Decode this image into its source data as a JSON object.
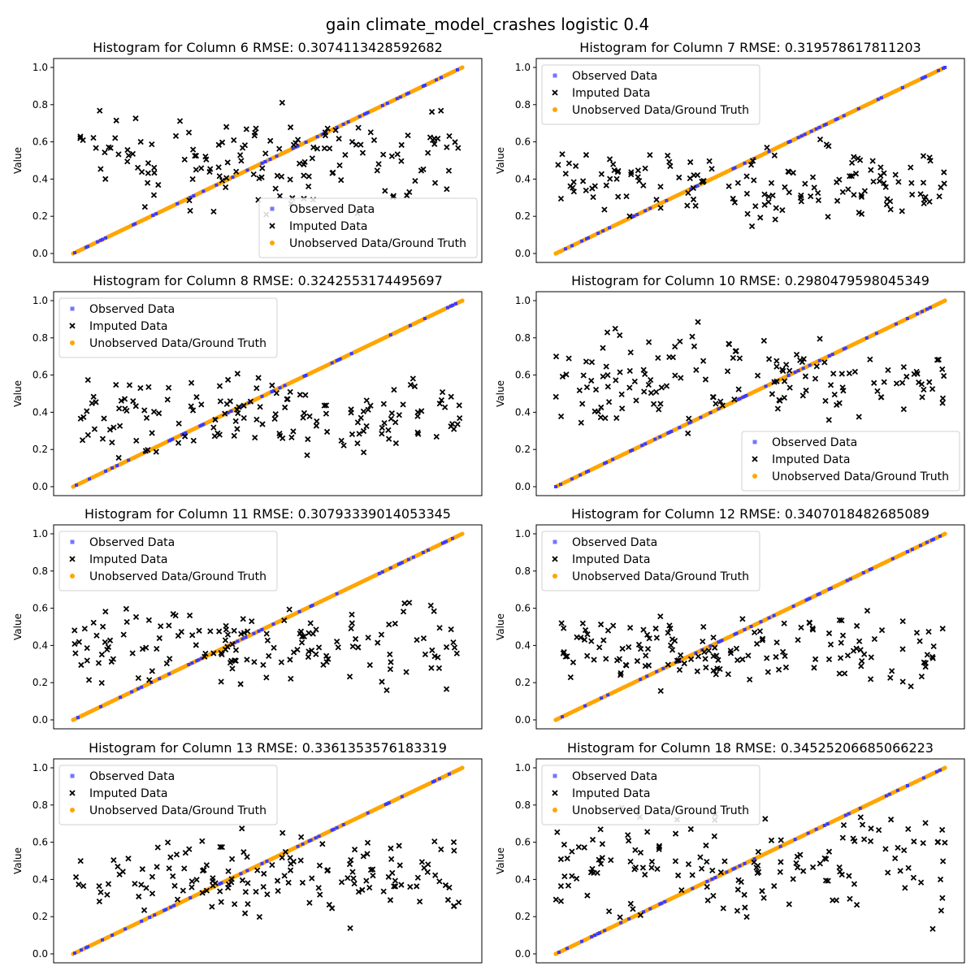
{
  "figure_title": "gain climate_model_crashes logistic 0.4",
  "colors": {
    "observed": "#3a3aff",
    "imputed": "#000000",
    "ground_truth": "#ffa500"
  },
  "chart_data": [
    {
      "type": "scatter",
      "title": "Histogram for Column 6 RMSE: 0.3074113428592682",
      "xlabel": "",
      "ylabel": "Value",
      "ylim": [
        0,
        1
      ],
      "yticks": [
        0.0,
        0.2,
        0.4,
        0.6,
        0.8,
        1.0
      ],
      "ytick_labels": [
        "0.0",
        "0.2",
        "0.4",
        "0.6",
        "0.8",
        "1.0"
      ],
      "legend_position": "lower-right",
      "legend": [
        "Observed Data",
        "Imputed Data",
        "Unobserved Data/Ground Truth"
      ],
      "n_points": 240,
      "imputed_range": [
        0.13,
        0.89
      ],
      "seed": 6
    },
    {
      "type": "scatter",
      "title": "Histogram for Column 7 RMSE: 0.319578617811203",
      "xlabel": "",
      "ylabel": "Value",
      "ylim": [
        0,
        1
      ],
      "yticks": [
        0.0,
        0.2,
        0.4,
        0.6,
        0.8,
        1.0
      ],
      "ytick_labels": [
        "0.0",
        "0.2",
        "0.4",
        "0.6",
        "0.8",
        "1.0"
      ],
      "legend_position": "upper-left",
      "legend": [
        "Observed Data",
        "Imputed Data",
        "Unobserved Data/Ground Truth"
      ],
      "n_points": 240,
      "imputed_range": [
        0.09,
        0.66
      ],
      "seed": 7
    },
    {
      "type": "scatter",
      "title": "Histogram for Column 8 RMSE: 0.3242553174495697",
      "xlabel": "",
      "ylabel": "Value",
      "ylim": [
        0,
        1
      ],
      "yticks": [
        0.0,
        0.2,
        0.4,
        0.6,
        0.8,
        1.0
      ],
      "ytick_labels": [
        "0.0",
        "0.2",
        "0.4",
        "0.6",
        "0.8",
        "1.0"
      ],
      "legend_position": "upper-left",
      "legend": [
        "Observed Data",
        "Imputed Data",
        "Unobserved Data/Ground Truth"
      ],
      "n_points": 240,
      "imputed_range": [
        0.09,
        0.67
      ],
      "seed": 8
    },
    {
      "type": "scatter",
      "title": "Histogram for Column 10 RMSE: 0.2980479598045349",
      "xlabel": "",
      "ylabel": "Value",
      "ylim": [
        0,
        1
      ],
      "yticks": [
        0.0,
        0.2,
        0.4,
        0.6,
        0.8,
        1.0
      ],
      "ytick_labels": [
        "0.0",
        "0.2",
        "0.4",
        "0.6",
        "0.8",
        "1.0"
      ],
      "legend_position": "lower-right",
      "legend": [
        "Observed Data",
        "Imputed Data",
        "Unobserved Data/Ground Truth"
      ],
      "n_points": 240,
      "imputed_range": [
        0.22,
        0.95
      ],
      "seed": 10
    },
    {
      "type": "scatter",
      "title": "Histogram for Column 11 RMSE: 0.30793339014053345",
      "xlabel": "",
      "ylabel": "Value",
      "ylim": [
        0,
        1
      ],
      "yticks": [
        0.0,
        0.2,
        0.4,
        0.6,
        0.8,
        1.0
      ],
      "ytick_labels": [
        "0.0",
        "0.2",
        "0.4",
        "0.6",
        "0.8",
        "1.0"
      ],
      "legend_position": "upper-left",
      "legend": [
        "Observed Data",
        "Imputed Data",
        "Unobserved Data/Ground Truth"
      ],
      "n_points": 240,
      "imputed_range": [
        0.07,
        0.7
      ],
      "seed": 11
    },
    {
      "type": "scatter",
      "title": "Histogram for Column 12 RMSE: 0.3407018482685089",
      "xlabel": "",
      "ylabel": "Value",
      "ylim": [
        0,
        1
      ],
      "yticks": [
        0.0,
        0.2,
        0.4,
        0.6,
        0.8,
        1.0
      ],
      "ytick_labels": [
        "0.0",
        "0.2",
        "0.4",
        "0.6",
        "0.8",
        "1.0"
      ],
      "legend_position": "upper-left",
      "legend": [
        "Observed Data",
        "Imputed Data",
        "Unobserved Data/Ground Truth"
      ],
      "n_points": 240,
      "imputed_range": [
        0.11,
        0.65
      ],
      "seed": 12
    },
    {
      "type": "scatter",
      "title": "Histogram for Column 13 RMSE: 0.3361353576183319",
      "xlabel": "",
      "ylabel": "Value",
      "ylim": [
        0,
        1
      ],
      "yticks": [
        0.0,
        0.2,
        0.4,
        0.6,
        0.8,
        1.0
      ],
      "ytick_labels": [
        "0.0",
        "0.2",
        "0.4",
        "0.6",
        "0.8",
        "1.0"
      ],
      "legend_position": "upper-left",
      "legend": [
        "Observed Data",
        "Imputed Data",
        "Unobserved Data/Ground Truth"
      ],
      "n_points": 240,
      "imputed_range": [
        0.1,
        0.75
      ],
      "seed": 13
    },
    {
      "type": "scatter",
      "title": "Histogram for Column 18 RMSE: 0.34525206685066223",
      "xlabel": "",
      "ylabel": "Value",
      "ylim": [
        0,
        1
      ],
      "yticks": [
        0.0,
        0.2,
        0.4,
        0.6,
        0.8,
        1.0
      ],
      "ytick_labels": [
        "0.0",
        "0.2",
        "0.4",
        "0.6",
        "0.8",
        "1.0"
      ],
      "legend_position": "upper-left",
      "legend": [
        "Observed Data",
        "Imputed Data",
        "Unobserved Data/Ground Truth"
      ],
      "n_points": 240,
      "imputed_range": [
        0.09,
        0.87
      ],
      "seed": 18
    }
  ]
}
